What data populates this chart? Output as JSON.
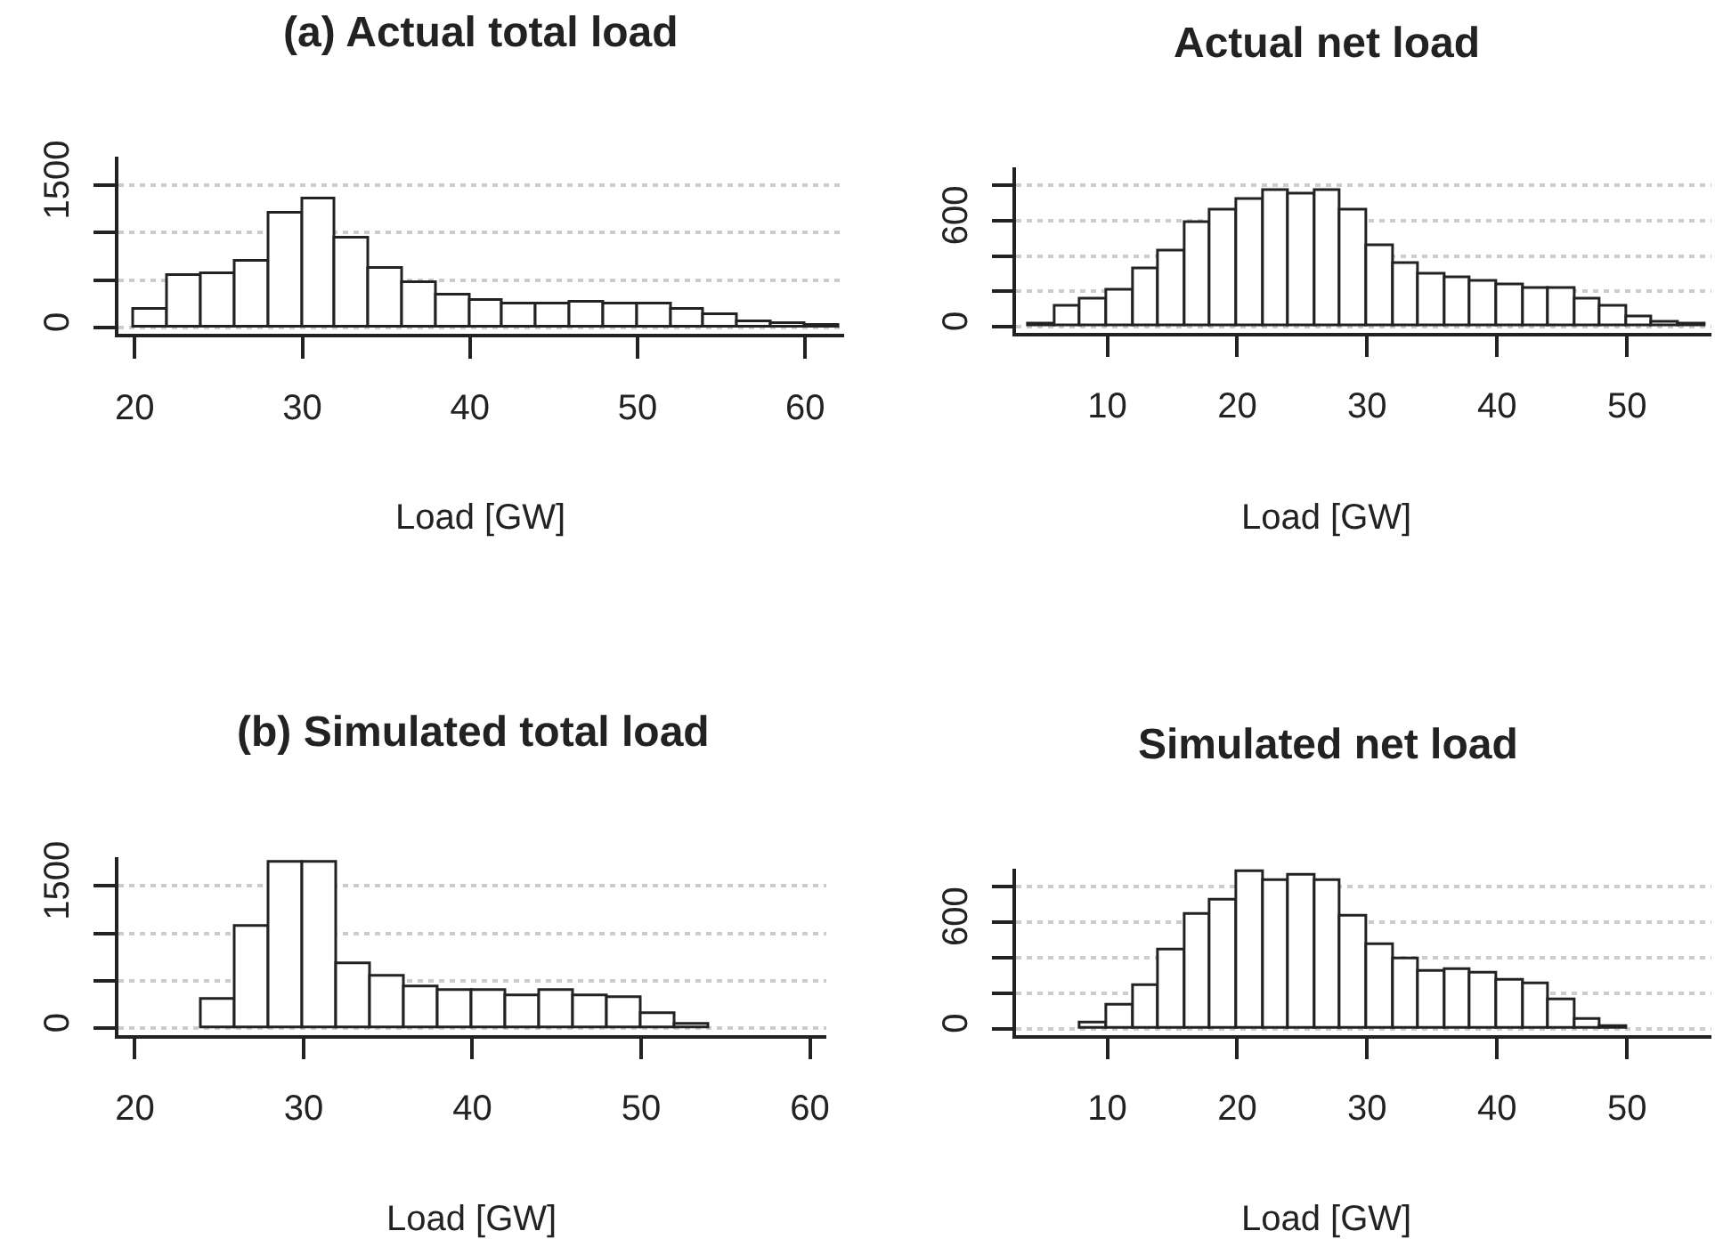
{
  "chart_data": [
    {
      "type": "histogram",
      "title": "(a) Actual total load",
      "xlabel": "Load [GW]",
      "bins": [
        20,
        22,
        24,
        26,
        28,
        30,
        32,
        34,
        36,
        38,
        40,
        42,
        44,
        46,
        48,
        50,
        52,
        54,
        56,
        58,
        60,
        62
      ],
      "values": [
        180,
        540,
        560,
        700,
        1190,
        1350,
        940,
        620,
        460,
        330,
        280,
        240,
        240,
        260,
        250,
        250,
        190,
        130,
        60,
        30,
        10
      ],
      "color": "#ffffff",
      "xlim": [
        19,
        62.3
      ],
      "xticks": [
        20,
        30,
        40,
        50,
        60
      ],
      "ylim": [
        -70,
        1800
      ],
      "yticks": [
        0,
        {
          "value": 500,
          "label": null
        },
        {
          "value": 1000,
          "label": null
        },
        1500
      ],
      "grid": "y"
    },
    {
      "type": "histogram",
      "title": "Actual net load",
      "xlabel": "Load [GW]",
      "bins": [
        4,
        6,
        8,
        10,
        12,
        14,
        16,
        18,
        20,
        22,
        24,
        26,
        28,
        30,
        32,
        34,
        36,
        38,
        40,
        42,
        44,
        46,
        48,
        50,
        52,
        54,
        56
      ],
      "values": [
        15,
        110,
        155,
        200,
        325,
        425,
        585,
        660,
        720,
        765,
        750,
        765,
        660,
        455,
        360,
        295,
        275,
        250,
        235,
        215,
        215,
        155,
        110,
        50,
        25,
        10
      ],
      "color": "#ffffff",
      "xlim": [
        3,
        56.5
      ],
      "xticks": [
        10,
        20,
        30,
        40,
        50
      ],
      "ylim": [
        -35,
        900
      ],
      "yticks": [
        0,
        {
          "value": 200,
          "label": null
        },
        {
          "value": 400,
          "label": null
        },
        600,
        {
          "value": 800,
          "label": null
        }
      ],
      "grid": "y"
    },
    {
      "type": "histogram",
      "title": "(b) Simulated total load",
      "xlabel": "Load [GW]",
      "bins": [
        24,
        26,
        28,
        30,
        32,
        34,
        36,
        38,
        40,
        42,
        44,
        46,
        48,
        50,
        52,
        54
      ],
      "values": [
        300,
        1070,
        1740,
        1740,
        680,
        540,
        430,
        390,
        390,
        330,
        400,
        330,
        310,
        150,
        30
      ],
      "color": "#ffffff",
      "xlim": [
        19,
        61
      ],
      "xticks": [
        20,
        30,
        40,
        50,
        60
      ],
      "ylim": [
        -70,
        1800
      ],
      "yticks": [
        0,
        {
          "value": 500,
          "label": null
        },
        {
          "value": 1000,
          "label": null
        },
        1500
      ],
      "grid": "y"
    },
    {
      "type": "histogram",
      "title": "Simulated net load",
      "xlabel": "Load [GW]",
      "bins": [
        8,
        10,
        12,
        14,
        16,
        18,
        20,
        22,
        24,
        26,
        28,
        30,
        32,
        34,
        36,
        38,
        40,
        42,
        44,
        46,
        48,
        50
      ],
      "values": [
        25,
        125,
        240,
        440,
        640,
        715,
        880,
        835,
        860,
        835,
        630,
        465,
        385,
        315,
        325,
        305,
        270,
        250,
        155,
        50,
        10
      ],
      "color": "#ffffff",
      "xlim": [
        3,
        56.5
      ],
      "xticks": [
        10,
        20,
        30,
        40,
        50
      ],
      "ylim": [
        -35,
        900
      ],
      "yticks": [
        0,
        {
          "value": 200,
          "label": null
        },
        {
          "value": 400,
          "label": null
        },
        600,
        {
          "value": 800,
          "label": null
        }
      ],
      "grid": "y"
    }
  ]
}
